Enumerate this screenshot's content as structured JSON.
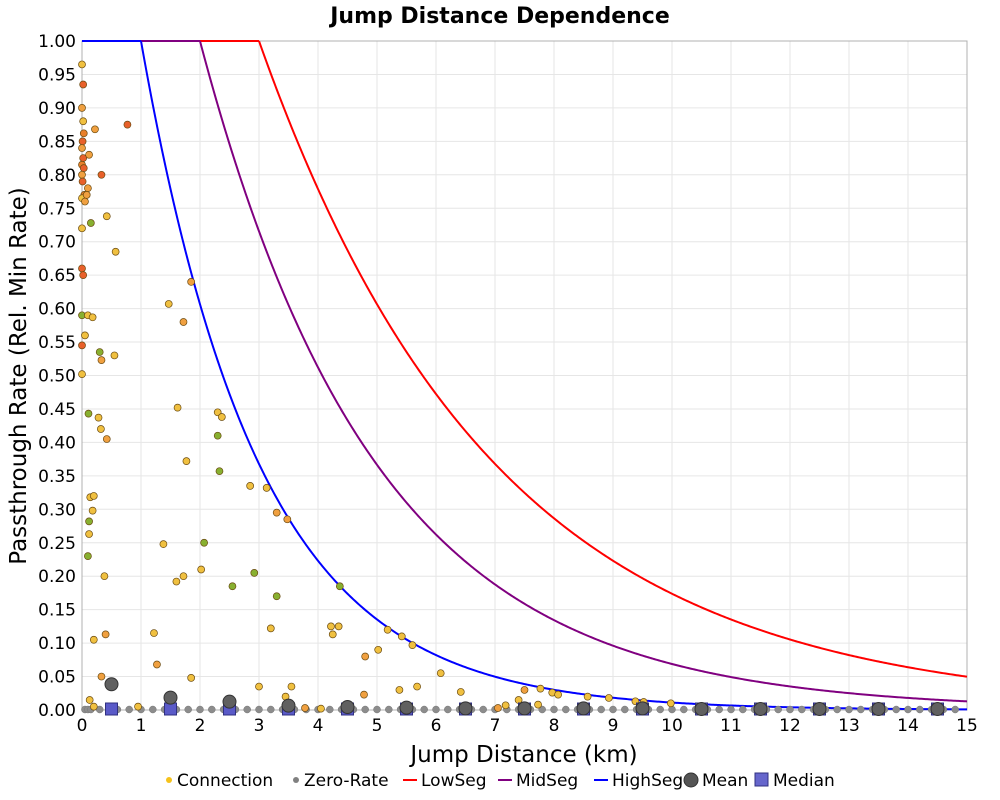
{
  "chart_data": {
    "type": "scatter",
    "title": "Jump Distance Dependence",
    "xlabel": "Jump Distance (km)",
    "ylabel": "Passthrough Rate (Rel. Min Rate)",
    "xlim": [
      0,
      15
    ],
    "ylim": [
      0,
      1.0
    ],
    "x_ticks": [
      0,
      1,
      2,
      3,
      4,
      5,
      6,
      7,
      8,
      9,
      10,
      11,
      12,
      13,
      14,
      15
    ],
    "y_ticks": [
      0,
      0.05,
      0.1,
      0.15,
      0.2,
      0.25,
      0.3,
      0.35,
      0.4,
      0.45,
      0.5,
      0.55,
      0.6,
      0.65,
      0.7,
      0.75,
      0.8,
      0.85,
      0.9,
      0.95,
      1.0
    ],
    "grid": true,
    "legend_position": "bottom",
    "legend": [
      {
        "label": "Connection",
        "kind": "dot",
        "color": "#f5c21b"
      },
      {
        "label": "Zero-Rate",
        "kind": "dot",
        "color": "#808080"
      },
      {
        "label": "LowSeg",
        "kind": "line",
        "color": "#ff0000"
      },
      {
        "label": "MidSeg",
        "kind": "line",
        "color": "#800080"
      },
      {
        "label": "HighSeg",
        "kind": "line",
        "color": "#0000ff"
      },
      {
        "label": "Mean",
        "kind": "circle",
        "color": "#555555"
      },
      {
        "label": "Median",
        "kind": "square",
        "color": "#6666cc"
      }
    ],
    "connections": [
      [
        0.0,
        0.965,
        "#f0c040"
      ],
      [
        0.02,
        0.935,
        "#e8602a"
      ],
      [
        0.0,
        0.9,
        "#f0a040"
      ],
      [
        0.02,
        0.88,
        "#f0c040"
      ],
      [
        0.03,
        0.862,
        "#e8802a"
      ],
      [
        0.01,
        0.85,
        "#e8602a"
      ],
      [
        0.0,
        0.84,
        "#f0a040"
      ],
      [
        0.02,
        0.825,
        "#e8602a"
      ],
      [
        0.0,
        0.815,
        "#e8802a"
      ],
      [
        0.03,
        0.81,
        "#e8602a"
      ],
      [
        0.0,
        0.8,
        "#f0a040"
      ],
      [
        0.01,
        0.79,
        "#e8602a"
      ],
      [
        0.04,
        0.77,
        "#e8802a"
      ],
      [
        0.0,
        0.765,
        "#f0c040"
      ],
      [
        0.05,
        0.76,
        "#f0a040"
      ],
      [
        0.12,
        0.83,
        "#f0a040"
      ],
      [
        0.22,
        0.868,
        "#f0a040"
      ],
      [
        0.77,
        0.875,
        "#e8602a"
      ],
      [
        0.33,
        0.8,
        "#e8602a"
      ],
      [
        0.1,
        0.78,
        "#f0a040"
      ],
      [
        0.08,
        0.77,
        "#f0a040"
      ],
      [
        0.42,
        0.738,
        "#f0c040"
      ],
      [
        0.15,
        0.728,
        "#88b030"
      ],
      [
        0.0,
        0.72,
        "#f0c040"
      ],
      [
        0.57,
        0.685,
        "#f0c040"
      ],
      [
        0.0,
        0.66,
        "#e8602a"
      ],
      [
        0.02,
        0.65,
        "#e8602a"
      ],
      [
        0.0,
        0.59,
        "#88b030"
      ],
      [
        0.1,
        0.59,
        "#f0c040"
      ],
      [
        0.18,
        0.587,
        "#f0c040"
      ],
      [
        0.05,
        0.56,
        "#f0c040"
      ],
      [
        0.0,
        0.545,
        "#e8602a"
      ],
      [
        0.3,
        0.535,
        "#88b030"
      ],
      [
        0.55,
        0.53,
        "#f0c040"
      ],
      [
        0.33,
        0.523,
        "#f0a040"
      ],
      [
        0.0,
        0.502,
        "#f0c040"
      ],
      [
        0.11,
        0.443,
        "#88b030"
      ],
      [
        0.28,
        0.437,
        "#f0c040"
      ],
      [
        0.32,
        0.42,
        "#f0c040"
      ],
      [
        0.42,
        0.405,
        "#f0a040"
      ],
      [
        0.14,
        0.318,
        "#f0c040"
      ],
      [
        0.2,
        0.32,
        "#f0c040"
      ],
      [
        0.18,
        0.298,
        "#f0c040"
      ],
      [
        0.12,
        0.282,
        "#88b030"
      ],
      [
        0.12,
        0.263,
        "#f0c040"
      ],
      [
        0.1,
        0.23,
        "#88b030"
      ],
      [
        0.38,
        0.2,
        "#f0c040"
      ],
      [
        0.2,
        0.105,
        "#f0c040"
      ],
      [
        0.4,
        0.113,
        "#f0a040"
      ],
      [
        0.33,
        0.05,
        "#f0a040"
      ],
      [
        0.13,
        0.015,
        "#f0c040"
      ],
      [
        0.2,
        0.005,
        "#f0c040"
      ],
      [
        1.85,
        0.64,
        "#f0a040"
      ],
      [
        1.47,
        0.607,
        "#f0c040"
      ],
      [
        1.72,
        0.58,
        "#f0a040"
      ],
      [
        1.62,
        0.452,
        "#f0c040"
      ],
      [
        2.3,
        0.445,
        "#f0c040"
      ],
      [
        2.37,
        0.438,
        "#f0c040"
      ],
      [
        2.3,
        0.41,
        "#88b030"
      ],
      [
        1.77,
        0.372,
        "#f0c040"
      ],
      [
        2.33,
        0.357,
        "#88b030"
      ],
      [
        2.85,
        0.335,
        "#f0c040"
      ],
      [
        3.13,
        0.332,
        "#f0c040"
      ],
      [
        3.3,
        0.295,
        "#f0a040"
      ],
      [
        3.48,
        0.285,
        "#f0a040"
      ],
      [
        1.38,
        0.248,
        "#f0c040"
      ],
      [
        2.07,
        0.25,
        "#88b030"
      ],
      [
        2.02,
        0.21,
        "#f0c040"
      ],
      [
        2.92,
        0.205,
        "#88b030"
      ],
      [
        1.72,
        0.2,
        "#f0c040"
      ],
      [
        1.6,
        0.192,
        "#f0c040"
      ],
      [
        2.55,
        0.185,
        "#88b030"
      ],
      [
        4.37,
        0.185,
        "#88b030"
      ],
      [
        3.3,
        0.17,
        "#88b030"
      ],
      [
        4.22,
        0.125,
        "#f0c040"
      ],
      [
        4.35,
        0.125,
        "#f0c040"
      ],
      [
        3.2,
        0.122,
        "#f0c040"
      ],
      [
        5.18,
        0.12,
        "#f0c040"
      ],
      [
        1.22,
        0.115,
        "#f0c040"
      ],
      [
        4.25,
        0.113,
        "#f0c040"
      ],
      [
        5.42,
        0.11,
        "#f0c040"
      ],
      [
        5.6,
        0.097,
        "#f0c040"
      ],
      [
        5.02,
        0.09,
        "#f0c040"
      ],
      [
        4.8,
        0.08,
        "#f0a040"
      ],
      [
        1.27,
        0.068,
        "#f0a040"
      ],
      [
        6.08,
        0.055,
        "#f0c040"
      ],
      [
        1.85,
        0.048,
        "#f0c040"
      ],
      [
        3.55,
        0.035,
        "#f0c040"
      ],
      [
        3.0,
        0.035,
        "#f0c040"
      ],
      [
        5.68,
        0.035,
        "#f0c040"
      ],
      [
        5.38,
        0.03,
        "#f0c040"
      ],
      [
        7.77,
        0.032,
        "#f0c040"
      ],
      [
        7.5,
        0.03,
        "#f0a040"
      ],
      [
        6.42,
        0.027,
        "#f0c040"
      ],
      [
        7.97,
        0.026,
        "#f0c040"
      ],
      [
        8.07,
        0.023,
        "#f0c040"
      ],
      [
        4.78,
        0.023,
        "#f0a040"
      ],
      [
        3.45,
        0.02,
        "#f0c040"
      ],
      [
        8.57,
        0.02,
        "#f0c040"
      ],
      [
        8.93,
        0.018,
        "#f0c040"
      ],
      [
        7.4,
        0.015,
        "#f0c040"
      ],
      [
        9.38,
        0.013,
        "#f0c040"
      ],
      [
        9.52,
        0.012,
        "#f0c040"
      ],
      [
        9.98,
        0.01,
        "#f0c040"
      ],
      [
        7.73,
        0.008,
        "#f0c040"
      ],
      [
        7.18,
        0.007,
        "#f0c040"
      ],
      [
        0.95,
        0.005,
        "#f0c040"
      ],
      [
        3.78,
        0.003,
        "#f0a040"
      ],
      [
        4.05,
        0.002,
        "#f0c040"
      ],
      [
        7.05,
        0.003,
        "#f0a040"
      ]
    ],
    "zero_rate_x": [
      0.05,
      0.1,
      0.15,
      0.3,
      0.45,
      0.6,
      0.8,
      1.0,
      1.2,
      1.4,
      1.6,
      1.8,
      2.0,
      2.2,
      2.4,
      2.6,
      2.8,
      3.0,
      3.2,
      3.4,
      3.6,
      3.8,
      4.0,
      4.2,
      4.4,
      4.6,
      4.8,
      5.0,
      5.2,
      5.4,
      5.6,
      5.8,
      6.0,
      6.2,
      6.4,
      6.6,
      6.8,
      7.0,
      7.2,
      7.4,
      7.6,
      7.8,
      8.0,
      8.2,
      8.4,
      8.6,
      8.8,
      9.0,
      9.2,
      9.4,
      9.6,
      9.8,
      10.0,
      10.2,
      10.4,
      10.6,
      10.8,
      11.0,
      11.2,
      11.4,
      11.6,
      11.8,
      12.0,
      12.2,
      12.4,
      12.6,
      12.8,
      13.0,
      13.2,
      13.4,
      13.6,
      13.8,
      14.0,
      14.2,
      14.4,
      14.6,
      14.8
    ],
    "mean": {
      "x": [
        0.5,
        1.5,
        2.5,
        3.5,
        4.5,
        5.5,
        6.5,
        7.5,
        8.5,
        9.5,
        10.5,
        11.5,
        12.5,
        13.5,
        14.5
      ],
      "y": [
        0.037,
        0.017,
        0.011,
        0.005,
        0.003,
        0.002,
        0.001,
        0.001,
        0.001,
        0.001,
        0.0,
        0.0,
        0.0,
        0.0,
        0.0
      ]
    },
    "median": {
      "x": [
        0.5,
        1.5,
        2.5,
        3.5,
        4.5,
        5.5,
        6.5,
        7.5,
        8.5,
        9.5,
        10.5,
        11.5,
        12.5,
        13.5,
        14.5
      ],
      "y": [
        0,
        0,
        0,
        0,
        0,
        0,
        0,
        0,
        0,
        0,
        0,
        0,
        0,
        0,
        0
      ]
    },
    "curves": [
      {
        "name": "LowSeg",
        "color": "#ff0000",
        "x0": 3.0,
        "k": 0.25
      },
      {
        "name": "MidSeg",
        "color": "#800080",
        "x0": 2.0,
        "k": 0.3346
      },
      {
        "name": "HighSeg",
        "color": "#0000ff",
        "x0": 1.0,
        "k": 0.5
      }
    ]
  }
}
